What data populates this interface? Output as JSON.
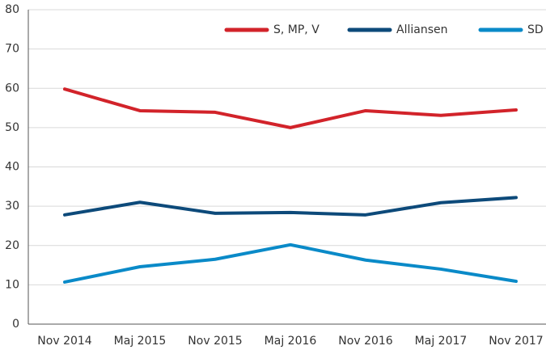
{
  "chart_data": {
    "type": "line",
    "categories": [
      "Nov 2014",
      "Maj 2015",
      "Nov 2015",
      "Maj 2016",
      "Nov 2016",
      "Maj 2017",
      "Nov 2017"
    ],
    "series": [
      {
        "name": "S, MP, V",
        "color": "#d2232a",
        "values": [
          59.8,
          54.3,
          53.9,
          50.0,
          54.3,
          53.1,
          54.5
        ]
      },
      {
        "name": "Alliansen",
        "color": "#0d4a7a",
        "values": [
          27.8,
          31.0,
          28.2,
          28.4,
          27.8,
          30.9,
          32.2
        ]
      },
      {
        "name": "SD",
        "color": "#0a8ac8",
        "values": [
          10.7,
          14.6,
          16.5,
          20.2,
          16.3,
          14.0,
          10.9
        ]
      }
    ],
    "ylim": [
      0,
      80
    ],
    "yticks": [
      0,
      10,
      20,
      30,
      40,
      50,
      60,
      70,
      80
    ],
    "grid": true,
    "legend": "top-right"
  }
}
